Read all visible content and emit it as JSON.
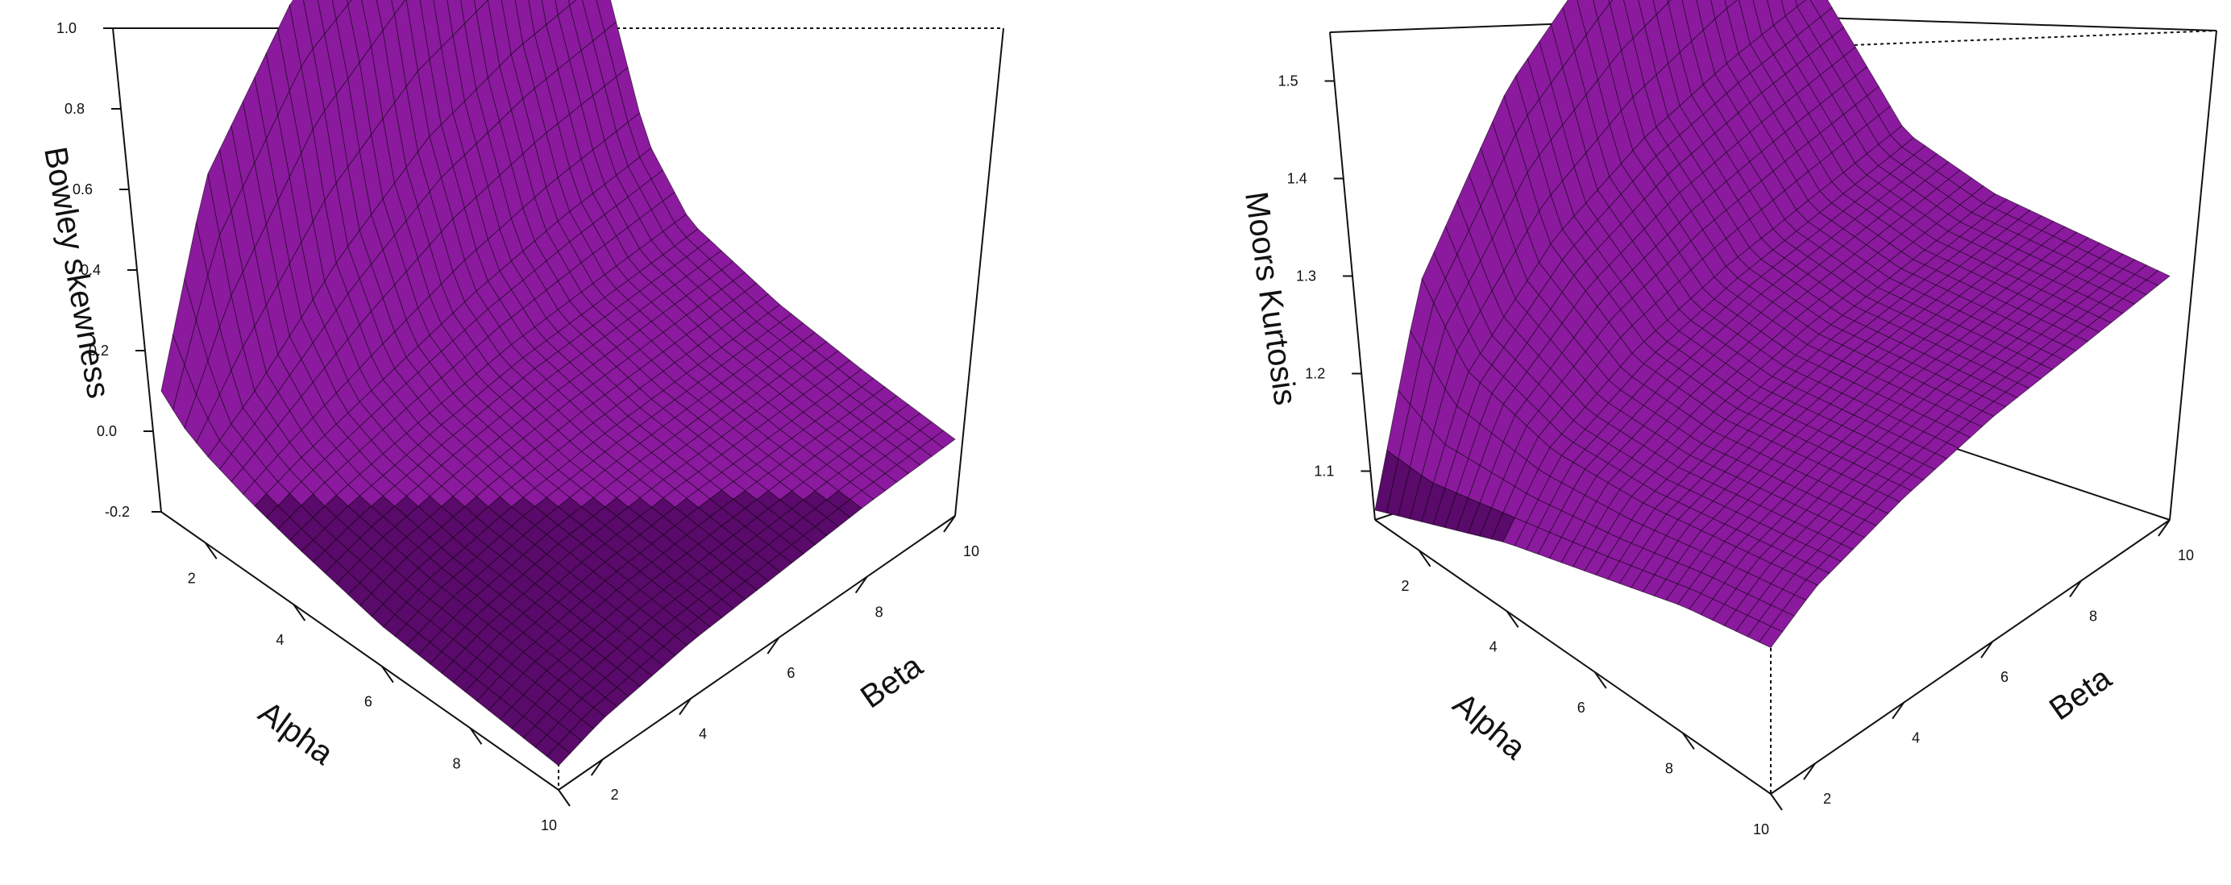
{
  "colors": {
    "surface": "#8b1a9e",
    "surface_dark": "#5a0a6a",
    "edge": "#000000"
  },
  "chart_data": [
    {
      "type": "surface3d",
      "zlabel": "Bowley skewness",
      "xlabel": "Alpha",
      "ylabel": "Beta",
      "xlim": [
        1,
        10
      ],
      "ylim": [
        1,
        10
      ],
      "zlim": [
        -0.2,
        1.0
      ],
      "x_ticks": [
        "2",
        "4",
        "6",
        "8",
        "10"
      ],
      "y_ticks": [
        "2",
        "4",
        "6",
        "8",
        "10"
      ],
      "z_ticks": [
        "-0.2",
        "0.0",
        "0.2",
        "0.4",
        "0.6",
        "0.8",
        "1.0"
      ],
      "surface_values": {
        "alpha": [
          1,
          1.5,
          2,
          3,
          4,
          6,
          8,
          10
        ],
        "beta": [
          1,
          2,
          4,
          6,
          8,
          10
        ],
        "z": [
          [
            0.1,
            0.55,
            0.85,
            0.95,
            0.98,
            1.0
          ],
          [
            0.05,
            0.3,
            0.6,
            0.75,
            0.82,
            0.85
          ],
          [
            0.02,
            0.1,
            0.3,
            0.45,
            0.52,
            0.55
          ],
          [
            -0.02,
            0.02,
            0.08,
            0.14,
            0.18,
            0.2
          ],
          [
            -0.05,
            -0.02,
            0.02,
            0.05,
            0.06,
            0.07
          ],
          [
            -0.1,
            -0.06,
            -0.02,
            0.0,
            0.01,
            0.02
          ],
          [
            -0.12,
            -0.08,
            -0.04,
            -0.02,
            -0.01,
            0.0
          ],
          [
            -0.14,
            -0.1,
            -0.06,
            -0.04,
            -0.02,
            -0.01
          ]
        ]
      },
      "grid": false
    },
    {
      "type": "surface3d",
      "zlabel": "Moors Kurtosis",
      "xlabel": "Alpha",
      "ylabel": "Beta",
      "xlim": [
        1,
        10
      ],
      "ylim": [
        1,
        10
      ],
      "zlim": [
        1.05,
        1.55
      ],
      "x_ticks": [
        "2",
        "4",
        "6",
        "8",
        "10"
      ],
      "y_ticks": [
        "2",
        "4",
        "6",
        "8",
        "10"
      ],
      "z_ticks": [
        "1.1",
        "1.2",
        "1.3",
        "1.4",
        "1.5"
      ],
      "surface_values": {
        "alpha": [
          1,
          2,
          4,
          6,
          8,
          10
        ],
        "beta": [
          1,
          2,
          4,
          6,
          8,
          10
        ],
        "z": [
          [
            1.06,
            1.26,
            1.4,
            1.47,
            1.51,
            1.53
          ],
          [
            1.08,
            1.2,
            1.28,
            1.32,
            1.34,
            1.35
          ],
          [
            1.12,
            1.18,
            1.22,
            1.24,
            1.25,
            1.26
          ],
          [
            1.15,
            1.19,
            1.22,
            1.24,
            1.25,
            1.26
          ],
          [
            1.18,
            1.21,
            1.24,
            1.26,
            1.27,
            1.28
          ],
          [
            1.2,
            1.23,
            1.26,
            1.28,
            1.29,
            1.3
          ]
        ]
      },
      "grid": false
    }
  ]
}
